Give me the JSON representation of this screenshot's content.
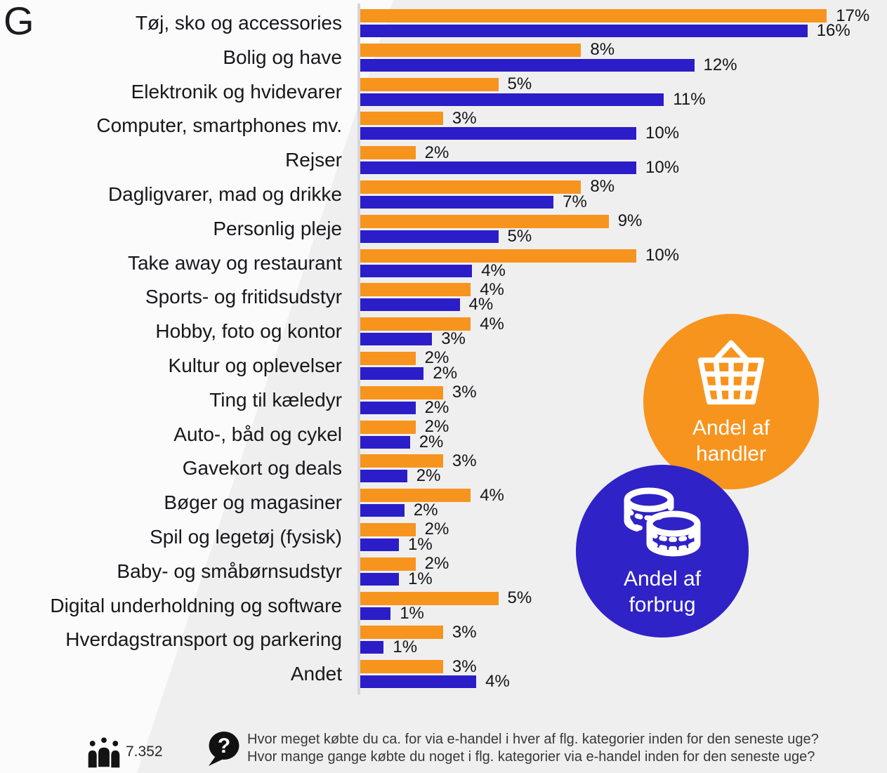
{
  "page": {
    "corner_letter": "G"
  },
  "legend": {
    "handler": {
      "label": "Andel af handler",
      "color": "#F7941E",
      "icon": "shopping-basket-icon"
    },
    "forbrug": {
      "label": "Andel af forbrug",
      "color": "#2F22C6",
      "icon": "coins-icon"
    }
  },
  "footer": {
    "respondents": "7.352",
    "question_line1": "Hvor meget købte du ca. for via e-handel i hver af flg. kategorier inden for den seneste uge?",
    "question_line2": "Hvor mange gange købte du noget i flg. kategorier via e-handel inden for den seneste uge?"
  },
  "chart_data": {
    "type": "bar",
    "orientation": "horizontal",
    "unit": "%",
    "xlim": [
      0,
      17.5
    ],
    "grid": false,
    "legend_position": "right-circular-badges",
    "categories": [
      "Tøj, sko og accessories",
      "Bolig og have",
      "Elektronik og hvidevarer",
      "Computer, smartphones mv.",
      "Rejser",
      "Dagligvarer, mad og drikke",
      "Personlig pleje",
      "Take away og restaurant",
      "Sports- og fritidsudstyr",
      "Hobby, foto og kontor",
      "Kultur og oplevelser",
      "Ting til kæledyr",
      "Auto-, båd og cykel",
      "Gavekort og deals",
      "Bøger og magasiner",
      "Spil og legetøj (fysisk)",
      "Baby- og småbørnsudstyr",
      "Digital underholdning og software",
      "Hverdagstransport og parkering",
      "Andet"
    ],
    "series": [
      {
        "name": "Andel af handler",
        "color": "#F7941E",
        "values": [
          17,
          8,
          5,
          3,
          2,
          8,
          9,
          10,
          4,
          4,
          2,
          3,
          2,
          3,
          4,
          2,
          2,
          5,
          3,
          3
        ],
        "bar_lengths": [
          16.9,
          8,
          5,
          3,
          2,
          8,
          9,
          10,
          4,
          4,
          2,
          3,
          2,
          3,
          4,
          2,
          2,
          5,
          3,
          3
        ]
      },
      {
        "name": "Andel af forbrug",
        "color": "#2B1DC8",
        "values": [
          16,
          12,
          11,
          10,
          10,
          7,
          5,
          4,
          4,
          3,
          2,
          2,
          2,
          2,
          2,
          1,
          1,
          1,
          1,
          4
        ],
        "bar_lengths": [
          16.2,
          12.1,
          11,
          10,
          10,
          7,
          5,
          4.05,
          3.6,
          2.6,
          2.3,
          2,
          1.8,
          1.7,
          1.6,
          1.4,
          1.4,
          1.1,
          0.85,
          4.2
        ]
      }
    ]
  }
}
